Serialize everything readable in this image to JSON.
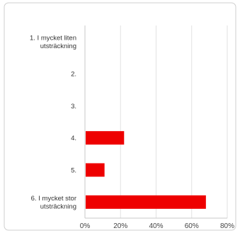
{
  "chart_data": {
    "type": "bar",
    "orientation": "horizontal",
    "categories": [
      [
        "1. I mycket liten",
        "utsträckning"
      ],
      [
        "2."
      ],
      [
        "3."
      ],
      [
        "4."
      ],
      [
        "5."
      ],
      [
        "6. I mycket stor",
        "utsträckning"
      ]
    ],
    "values": [
      0,
      0,
      0,
      22,
      11,
      68
    ],
    "value_unit": "%",
    "xlim": [
      0,
      80
    ],
    "x_ticks": [
      "0%",
      "20%",
      "40%",
      "60%",
      "80%"
    ],
    "grid": true,
    "bar_color": "#ee0000",
    "grid_color": "#e2e2e2",
    "panel_border_color": "#cfcfcf"
  }
}
